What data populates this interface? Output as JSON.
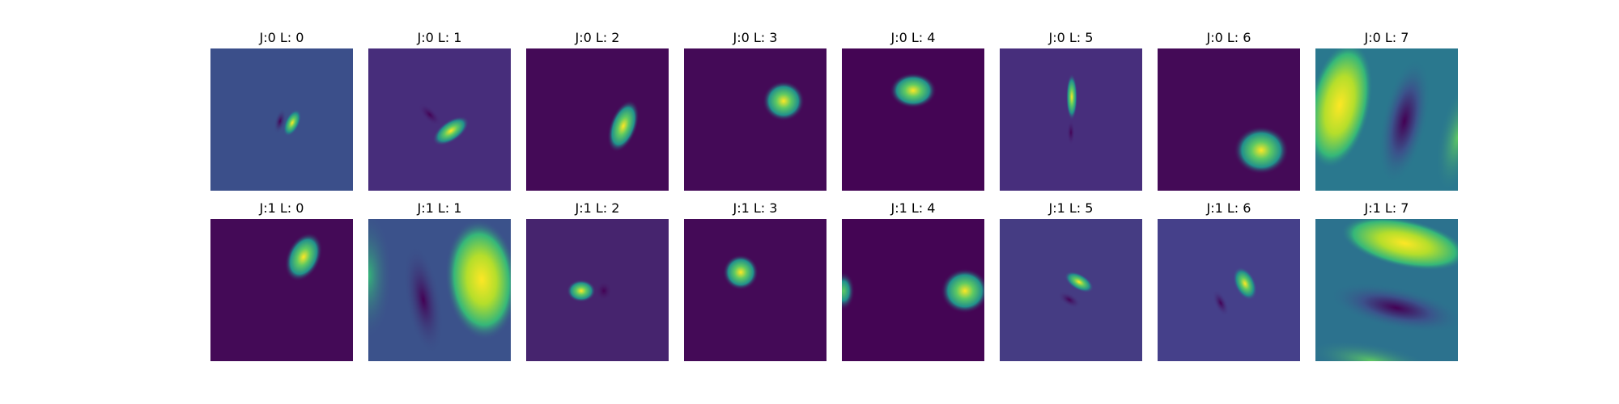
{
  "colors": {
    "viridis_dark": "#440154",
    "viridis_purple": "#472d7b",
    "viridis_blue": "#3b528b",
    "viridis_teal": "#21918c",
    "viridis_green": "#5ec962",
    "viridis_yellow": "#fde725"
  },
  "panels": [
    {
      "title": "J:0 L: 0",
      "image": "gabor-filter-j0-l0",
      "background": "#3b4f8a"
    },
    {
      "title": "J:0 L: 1",
      "image": "gabor-filter-j0-l1",
      "background": "#472d7b"
    },
    {
      "title": "J:0 L: 2",
      "image": "gabor-filter-j0-l2",
      "background": "#440a57"
    },
    {
      "title": "J:0 L: 3",
      "image": "gabor-filter-j0-l3",
      "background": "#440a57"
    },
    {
      "title": "J:0 L: 4",
      "image": "gabor-filter-j0-l4",
      "background": "#440554"
    },
    {
      "title": "J:0 L: 5",
      "image": "gabor-filter-j0-l5",
      "background": "#472e7c"
    },
    {
      "title": "J:0 L: 6",
      "image": "gabor-filter-j0-l6",
      "background": "#440a57"
    },
    {
      "title": "J:0 L: 7",
      "image": "gabor-filter-j0-l7",
      "background": "#2a788e"
    },
    {
      "title": "J:1 L: 0",
      "image": "gabor-filter-j1-l0",
      "background": "#440a57"
    },
    {
      "title": "J:1 L: 1",
      "image": "gabor-filter-j1-l1",
      "background": "#3b528b"
    },
    {
      "title": "J:1 L: 2",
      "image": "gabor-filter-j1-l2",
      "background": "#46246e"
    },
    {
      "title": "J:1 L: 3",
      "image": "gabor-filter-j1-l3",
      "background": "#440a57"
    },
    {
      "title": "J:1 L: 4",
      "image": "gabor-filter-j1-l4",
      "background": "#440554"
    },
    {
      "title": "J:1 L: 5",
      "image": "gabor-filter-j1-l5",
      "background": "#453c83"
    },
    {
      "title": "J:1 L: 6",
      "image": "gabor-filter-j1-l6",
      "background": "#45408a"
    },
    {
      "title": "J:1 L: 7",
      "image": "gabor-filter-j1-l7",
      "background": "#2c728e"
    }
  ]
}
